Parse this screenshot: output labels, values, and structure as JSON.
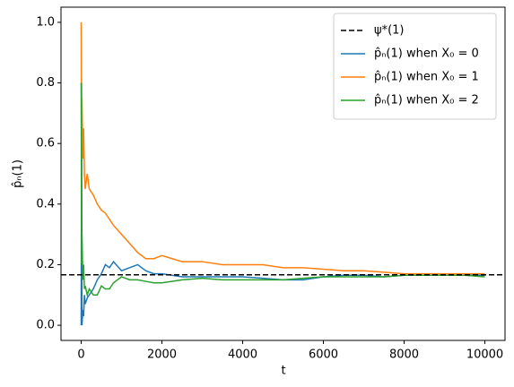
{
  "chart_data": {
    "type": "line",
    "xlabel": "t",
    "ylabel": "p̂ₙ(1)",
    "xlim": [
      -500,
      10500
    ],
    "ylim": [
      -0.05,
      1.05
    ],
    "xticks": [
      0,
      2000,
      4000,
      6000,
      8000,
      10000
    ],
    "yticks": [
      {
        "value": 0,
        "label": "0.0"
      },
      {
        "value": 0.2,
        "label": "0.2"
      },
      {
        "value": 0.4,
        "label": "0.4"
      },
      {
        "value": 0.6,
        "label": "0.6"
      },
      {
        "value": 0.8,
        "label": "0.8"
      },
      {
        "value": 1,
        "label": "1.0"
      }
    ],
    "legend": "upper right",
    "reference_line": {
      "name": "ψ*(1)",
      "value": 0.1667,
      "color": "#000000",
      "style": "dashed"
    },
    "x": [
      0,
      10,
      20,
      40,
      60,
      80,
      100,
      150,
      200,
      300,
      400,
      500,
      600,
      700,
      800,
      1000,
      1200,
      1400,
      1600,
      1800,
      2000,
      2500,
      3000,
      3500,
      4000,
      4500,
      5000,
      5500,
      6000,
      6500,
      7000,
      7500,
      8000,
      8500,
      9000,
      9500,
      10000
    ],
    "series": [
      {
        "name": "p̂ₙ(1) when X₀ = 0",
        "color": "#1f77b4",
        "values": [
          0,
          0.8,
          0,
          0.05,
          0.03,
          0.1,
          0.07,
          0.09,
          0.1,
          0.12,
          0.15,
          0.17,
          0.2,
          0.19,
          0.21,
          0.18,
          0.19,
          0.2,
          0.18,
          0.17,
          0.17,
          0.16,
          0.16,
          0.16,
          0.16,
          0.155,
          0.15,
          0.15,
          0.16,
          0.165,
          0.165,
          0.16,
          0.165,
          0.165,
          0.165,
          0.165,
          0.165
        ]
      },
      {
        "name": "p̂ₙ(1) when X₀ = 1",
        "color": "#ff7f0e",
        "values": [
          1,
          0.6,
          0.75,
          0.55,
          0.65,
          0.5,
          0.45,
          0.5,
          0.45,
          0.43,
          0.4,
          0.38,
          0.37,
          0.35,
          0.33,
          0.3,
          0.27,
          0.24,
          0.22,
          0.22,
          0.23,
          0.21,
          0.21,
          0.2,
          0.2,
          0.2,
          0.19,
          0.19,
          0.185,
          0.18,
          0.18,
          0.175,
          0.17,
          0.17,
          0.17,
          0.17,
          0.17
        ]
      },
      {
        "name": "p̂ₙ(1) when X₀ = 2",
        "color": "#2ca02c",
        "values": [
          0.8,
          0.2,
          0.3,
          0.15,
          0.2,
          0.12,
          0.13,
          0.1,
          0.12,
          0.1,
          0.1,
          0.13,
          0.12,
          0.12,
          0.14,
          0.16,
          0.15,
          0.15,
          0.145,
          0.14,
          0.14,
          0.15,
          0.155,
          0.15,
          0.15,
          0.15,
          0.15,
          0.155,
          0.16,
          0.16,
          0.16,
          0.16,
          0.165,
          0.165,
          0.165,
          0.165,
          0.16
        ]
      }
    ]
  }
}
